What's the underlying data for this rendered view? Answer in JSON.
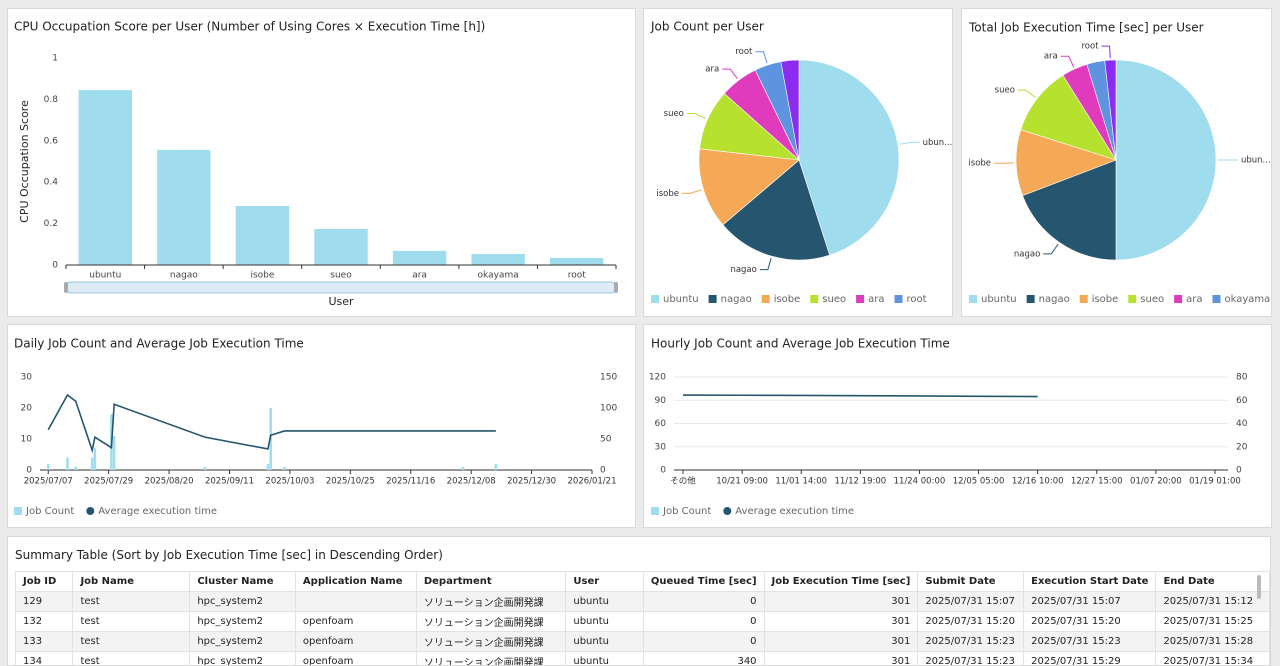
{
  "chart_data": [
    {
      "type": "bar",
      "title": "CPU Occupation Score per User (Number of Using Cores × Execution Time [h])",
      "ylabel": "CPU Occupation Score",
      "xlabel": "User",
      "categories": [
        "ubuntu",
        "nagao",
        "isobe",
        "sueo",
        "ara",
        "okayama",
        "root"
      ],
      "values": [
        0.845,
        0.556,
        0.285,
        0.174,
        0.068,
        0.053,
        0.034
      ],
      "color": "#9fdcee",
      "ylim": [
        0,
        1
      ],
      "yticks": [
        0,
        0.2,
        0.4,
        0.6,
        0.8,
        1
      ],
      "grid": false
    },
    {
      "type": "pie",
      "title": "Job Count per User",
      "categories": [
        "ubuntu",
        "nagao",
        "isobe",
        "sueo",
        "ara",
        "root",
        null
      ],
      "slice_labels": [
        "ubun...",
        "nagao",
        "isobe",
        "sueo",
        "ara",
        "root",
        null
      ],
      "values": [
        45,
        18.7,
        13,
        9.8,
        6.2,
        4.3,
        2.9
      ],
      "colors": [
        "#9fdcee",
        "#26566f",
        "#f5a855",
        "#b7e12f",
        "#e03bbd",
        "#5e93e0",
        "#8b2cf0"
      ]
    },
    {
      "type": "pie",
      "title": "Total Job Execution Time [sec] per User",
      "categories": [
        "ubuntu",
        "nagao",
        "isobe",
        "sueo",
        "ara",
        "okayama",
        null
      ],
      "slice_labels": [
        "ubun...",
        "nagao",
        "isobe",
        "sueo",
        "ara",
        null,
        "root"
      ],
      "values": [
        50,
        19.2,
        10.7,
        11.2,
        4.2,
        2.9,
        1.8
      ],
      "colors": [
        "#9fdcee",
        "#26566f",
        "#f5a855",
        "#b7e12f",
        "#e03bbd",
        "#5e93e0",
        "#8b2cf0"
      ]
    },
    {
      "type": "combo",
      "title": "Daily Job Count and Average Job Execution Time",
      "x": [
        "2025/07/07",
        "2025/07/14",
        "2025/07/17",
        "2025/07/23",
        "2025/07/24",
        "2025/07/30",
        "2025/07/31",
        "2025/09/02",
        "2025/09/25",
        "2025/09/26",
        "2025/10/01",
        "2025/12/05",
        "2025/12/17"
      ],
      "xlim": [
        "2025/07/04",
        "2026/01/21"
      ],
      "xticks": [
        "2025/07/07",
        "2025/07/29",
        "2025/08/20",
        "2025/09/11",
        "2025/10/03",
        "2025/10/25",
        "2025/11/16",
        "2025/12/08",
        "2025/12/30",
        "2026/01/21"
      ],
      "ylim": [
        0,
        30
      ],
      "yticks": [
        0,
        10,
        20,
        30
      ],
      "y2lim": [
        0,
        150
      ],
      "y2ticks": [
        0,
        50,
        100,
        150
      ],
      "grid": false,
      "series": [
        {
          "name": "Job Count",
          "type": "bar",
          "color": "#9fdcee",
          "values": [
            2,
            4,
            1,
            4,
            7,
            18,
            11,
            1,
            2,
            20,
            1,
            1,
            2
          ]
        },
        {
          "name": "Average execution time",
          "type": "line",
          "axis": "y2",
          "color": "#26566f",
          "values": [
            65,
            121,
            111,
            32,
            53,
            36,
            106,
            53,
            34,
            56,
            63,
            63,
            63
          ]
        }
      ]
    },
    {
      "type": "combo",
      "title": "Hourly Job Count and Average Job Execution Time",
      "categories": [
        "その他",
        "10/21 09:00",
        "11/01 14:00",
        "11/12 19:00",
        "11/24 00:00",
        "12/05 05:00",
        "12/16 10:00",
        "12/27 15:00",
        "01/07 20:00",
        "01/19 01:00"
      ],
      "ylim": [
        0,
        120
      ],
      "yticks": [
        0,
        30,
        60,
        90,
        120
      ],
      "y2lim": [
        0,
        80
      ],
      "y2ticks": [
        0,
        20,
        40,
        60,
        80
      ],
      "grid": true,
      "series": [
        {
          "name": "Job Count",
          "type": "bar",
          "color": "#9fdcee",
          "values": [
            0,
            0,
            0,
            0,
            0,
            0,
            0,
            0,
            0,
            0
          ]
        },
        {
          "name": "Average execution time",
          "type": "line",
          "axis": "y2",
          "color": "#26566f",
          "values": [
            64.5,
            64.3,
            64.1,
            63.9,
            63.7,
            63.4,
            63.2,
            null,
            null,
            null
          ]
        }
      ]
    }
  ],
  "table": {
    "title": "Summary Table (Sort by Job Execution Time [sec] in Descending Order)",
    "columns": [
      "Job ID",
      "Job Name",
      "Cluster Name",
      "Application Name",
      "Department",
      "User",
      "Queued Time [sec]",
      "Job Execution Time [sec]",
      "Submit Date",
      "Execution Start Date",
      "End Date"
    ],
    "rows": [
      [
        129,
        "test",
        "hpc_system2",
        null,
        "ソリューション企画開発課",
        "ubuntu",
        0,
        301,
        "2025/07/31 15:07",
        "2025/07/31 15:07",
        "2025/07/31 15:12"
      ],
      [
        132,
        "test",
        "hpc_system2",
        "openfoam",
        "ソリューション企画開発課",
        "ubuntu",
        0,
        301,
        "2025/07/31 15:20",
        "2025/07/31 15:20",
        "2025/07/31 15:25"
      ],
      [
        133,
        "test",
        "hpc_system2",
        "openfoam",
        "ソリューション企画開発課",
        "ubuntu",
        0,
        301,
        "2025/07/31 15:23",
        "2025/07/31 15:23",
        "2025/07/31 15:28"
      ],
      [
        134,
        "test",
        "hpc_system2",
        "openfoam",
        "ソリューション企画開発課",
        "ubuntu",
        340,
        301,
        "2025/07/31 15:23",
        "2025/07/31 15:29",
        "2025/07/31 15:34"
      ]
    ]
  }
}
